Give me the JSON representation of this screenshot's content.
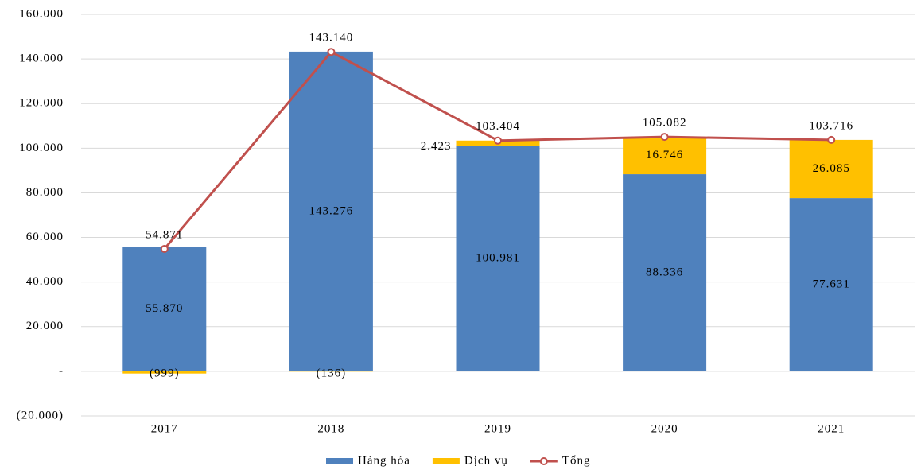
{
  "chart_data": {
    "type": "stacked_bar_line",
    "categories": [
      "2017",
      "2018",
      "2019",
      "2020",
      "2021"
    ],
    "series": [
      {
        "name": "Hàng hóa",
        "color": "#4f81bd",
        "values": [
          55870,
          143276,
          100981,
          88336,
          77631
        ],
        "value_labels": [
          "55.870",
          "143.276",
          "100.981",
          "88.336",
          "77.631"
        ]
      },
      {
        "name": "Dịch vụ",
        "color": "#ffc000",
        "values": [
          -999,
          -136,
          2423,
          16746,
          26085
        ],
        "value_labels": [
          "(999)",
          "(136)",
          "2.423",
          "16.746",
          "26.085"
        ]
      },
      {
        "name": "Tổng",
        "color": "#c0504d",
        "type": "line",
        "values": [
          54871,
          143140,
          103404,
          105082,
          103716
        ],
        "value_labels": [
          "54.871",
          "143.140",
          "103.404",
          "105.082",
          "103.716"
        ]
      }
    ],
    "ylim": [
      -20000,
      160000
    ],
    "yticks": [
      {
        "value": -20000,
        "label": "(20.000)"
      },
      {
        "value": 0,
        "label": "-"
      },
      {
        "value": 20000,
        "label": "20.000"
      },
      {
        "value": 40000,
        "label": "40.000"
      },
      {
        "value": 60000,
        "label": "60.000"
      },
      {
        "value": 80000,
        "label": "80.000"
      },
      {
        "value": 100000,
        "label": "100.000"
      },
      {
        "value": 120000,
        "label": "120.000"
      },
      {
        "value": 140000,
        "label": "140.000"
      },
      {
        "value": 160000,
        "label": "160.000"
      }
    ],
    "grid": true,
    "legend": "bottom"
  }
}
